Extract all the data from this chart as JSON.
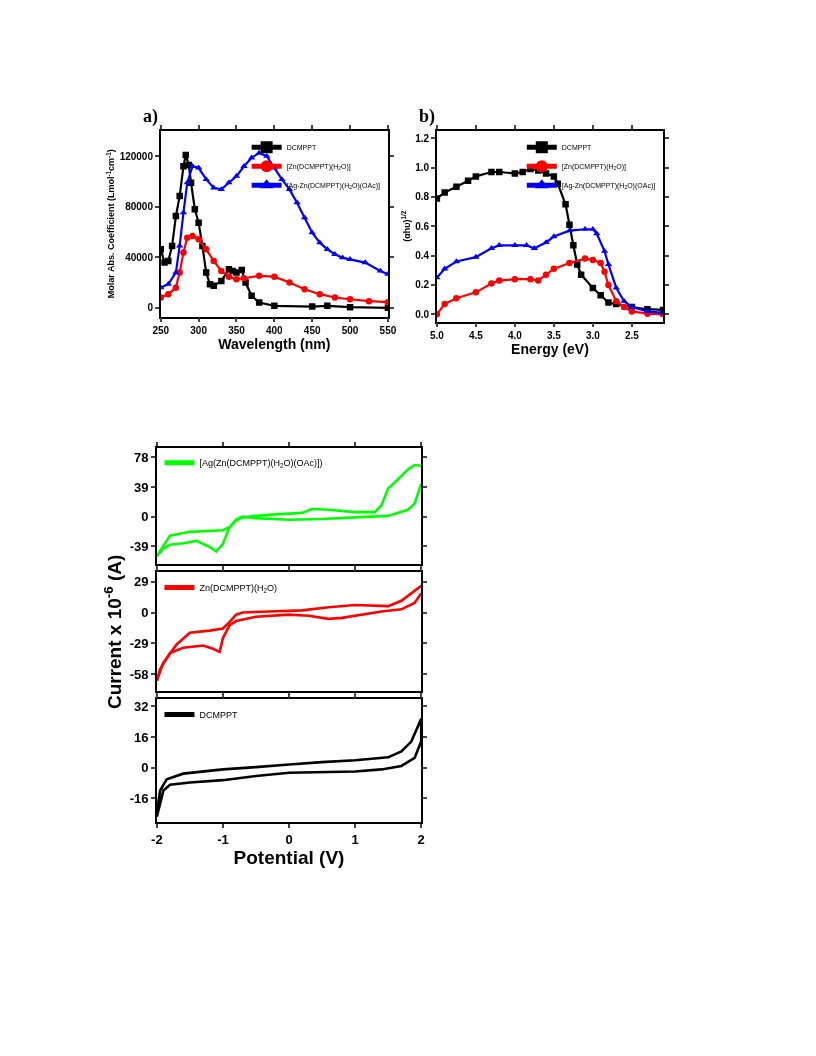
{
  "chart_data": [
    {
      "type": "line",
      "title": "a)",
      "xlabel": "Wavelength (nm)",
      "ylabel": "Molar Abs. Coefficient (Lmol$^{-1}$cm$^{-1}$)",
      "xlim": [
        250,
        550
      ],
      "xticks": [
        250,
        300,
        350,
        400,
        450,
        500,
        550
      ],
      "ylim": [
        -7000,
        140000
      ],
      "yticks": [
        0,
        40000,
        80000,
        120000
      ],
      "legend": "top right",
      "series": [
        {
          "name": "DCMPPT",
          "color": "#000000",
          "marker": "square",
          "x": [
            250,
            255,
            260,
            265,
            270,
            275,
            280,
            283,
            287,
            290,
            295,
            300,
            305,
            310,
            315,
            320,
            330,
            340,
            345,
            350,
            357,
            362,
            370,
            380,
            400,
            450,
            470,
            500,
            550
          ],
          "values": [
            46300,
            35800,
            37000,
            49000,
            72600,
            88400,
            112000,
            121000,
            113000,
            99000,
            78000,
            67400,
            49000,
            27900,
            18700,
            17400,
            21300,
            30500,
            29200,
            28000,
            30000,
            20000,
            9500,
            4200,
            1600,
            1000,
            1600,
            500,
            0
          ]
        },
        {
          "name": "[Zn(DCMPPT)(H$_{2}$O)]",
          "color": "#ff0000",
          "marker": "circle",
          "x": [
            250,
            260,
            270,
            275,
            280,
            285,
            292,
            300,
            310,
            320,
            330,
            340,
            350,
            360,
            380,
            400,
            420,
            440,
            460,
            480,
            500,
            525,
            550
          ],
          "values": [
            8200,
            10800,
            16000,
            27900,
            43700,
            55500,
            56800,
            54200,
            46300,
            37100,
            29200,
            24700,
            22600,
            23400,
            25300,
            24700,
            20000,
            14700,
            10800,
            8200,
            6800,
            5300,
            4500
          ]
        },
        {
          "name": "[Ag-Zn(DCMPPT)(H$_{2}$O)(OAc)]",
          "color": "#0000ff",
          "marker": "triangle",
          "x": [
            250,
            260,
            270,
            275,
            280,
            285,
            292,
            300,
            310,
            320,
            330,
            340,
            350,
            360,
            370,
            380,
            390,
            400,
            410,
            420,
            430,
            440,
            450,
            460,
            470,
            480,
            490,
            500,
            520,
            540,
            550
          ],
          "values": [
            16000,
            18700,
            27900,
            49000,
            75300,
            99000,
            112000,
            110800,
            101600,
            95000,
            93700,
            99000,
            104200,
            112000,
            118700,
            122600,
            120000,
            110800,
            101600,
            93700,
            83200,
            71300,
            59500,
            51600,
            46300,
            42400,
            39700,
            38400,
            35800,
            29200,
            26600
          ]
        }
      ]
    },
    {
      "type": "line",
      "title": "b)",
      "xlabel": "Energy (eV)",
      "ylabel": "(αhυ)$^{1/2}$",
      "xlim": [
        5.0,
        2.1
      ],
      "xticks": [
        {
          "value": 5.0,
          "label": "5.0"
        },
        {
          "value": 4.5,
          "label": "4.5"
        },
        {
          "value": 4.0,
          "label": "4.0"
        },
        {
          "value": 3.5,
          "label": "3.5"
        },
        {
          "value": 3.0,
          "label": "3.0"
        },
        {
          "value": 2.5,
          "label": "2.5"
        }
      ],
      "ylim": [
        -0.05,
        1.25
      ],
      "yticks": [
        {
          "value": 0,
          "label": "0.0"
        },
        0.2,
        0.4,
        0.6,
        0.8,
        {
          "value": 1,
          "label": "1.0"
        },
        1.2
      ],
      "legend": "top right",
      "series": [
        {
          "name": "DCMPPT",
          "color": "#000000",
          "marker": "square",
          "x": [
            5.0,
            4.9,
            4.75,
            4.6,
            4.5,
            4.3,
            4.2,
            4.0,
            3.9,
            3.8,
            3.7,
            3.6,
            3.5,
            3.45,
            3.35,
            3.3,
            3.25,
            3.2,
            3.15,
            3.0,
            2.9,
            2.8,
            2.7,
            2.5,
            2.3,
            2.1
          ],
          "values": [
            0.79,
            0.83,
            0.87,
            0.91,
            0.94,
            0.97,
            0.97,
            0.96,
            0.97,
            0.99,
            0.98,
            0.96,
            0.94,
            0.89,
            0.75,
            0.61,
            0.47,
            0.34,
            0.27,
            0.18,
            0.13,
            0.08,
            0.07,
            0.05,
            0.035,
            0.03
          ]
        },
        {
          "name": "[Zn(DCMPPT)(H$_{2}$O)]",
          "color": "#ff0000",
          "marker": "circle",
          "x": [
            5.0,
            4.9,
            4.75,
            4.5,
            4.3,
            4.2,
            4.0,
            3.8,
            3.7,
            3.6,
            3.5,
            3.3,
            3.1,
            3.0,
            2.9,
            2.85,
            2.8,
            2.7,
            2.6,
            2.5,
            2.3,
            2.1
          ],
          "values": [
            0.0,
            0.07,
            0.11,
            0.15,
            0.21,
            0.23,
            0.24,
            0.24,
            0.23,
            0.27,
            0.31,
            0.35,
            0.38,
            0.37,
            0.35,
            0.29,
            0.2,
            0.09,
            0.05,
            0.02,
            0.005,
            0.0
          ]
        },
        {
          "name": "[Ag-Zn(DCMPPT)(H$_{2}$O)(OAc)]",
          "color": "#0000ff",
          "marker": "triangle",
          "x": [
            5.0,
            4.9,
            4.75,
            4.5,
            4.3,
            4.2,
            4.0,
            3.85,
            3.75,
            3.6,
            3.5,
            3.3,
            3.1,
            3.0,
            2.95,
            2.85,
            2.8,
            2.7,
            2.6,
            2.5,
            2.3,
            2.1
          ],
          "values": [
            0.25,
            0.31,
            0.36,
            0.39,
            0.45,
            0.47,
            0.47,
            0.47,
            0.45,
            0.49,
            0.53,
            0.57,
            0.58,
            0.58,
            0.55,
            0.43,
            0.34,
            0.18,
            0.09,
            0.05,
            0.02,
            0.01
          ]
        }
      ]
    },
    {
      "type": "line",
      "xlim": [
        -2,
        2
      ],
      "xticks": [
        -2,
        -1,
        0,
        1,
        2
      ],
      "ylim": [
        -63,
        91
      ],
      "yticks": [
        -39,
        0,
        39,
        78
      ],
      "tick_labels": "y",
      "legend": "top left",
      "series": [
        {
          "name": "[Ag(Zn(DCMPPT)(H$_{2}$O)(OAc)])",
          "color": "#00ff00",
          "x": [
            -2.0,
            -1.8,
            -1.5,
            -1.0,
            -0.9,
            -0.8,
            -0.7,
            -0.5,
            0,
            0.5,
            1.0,
            1.5,
            1.8,
            1.9,
            2.0
          ],
          "values": [
            -52,
            -25,
            -20,
            -18,
            -14,
            -4,
            0,
            -2,
            -4,
            -3,
            -1,
            1,
            9,
            17,
            43
          ]
        },
        {
          "color": "#00ff00",
          "x": [
            -2.0,
            -1.9,
            -1.8,
            -1.6,
            -1.4,
            -1.2,
            -1.1,
            -1.0,
            -0.9,
            -0.8,
            -0.7,
            -0.5,
            -0.2,
            0.2,
            0.35,
            0.6,
            1.0,
            1.3,
            1.4,
            1.5,
            1.6,
            1.8,
            1.9,
            2.0
          ],
          "values": [
            -52,
            -42,
            -37,
            -35,
            -32,
            -40,
            -46,
            -36,
            -14,
            -5,
            -1,
            1,
            3,
            5,
            10,
            9,
            6,
            6,
            15,
            37,
            45,
            62,
            68,
            67
          ]
        }
      ]
    },
    {
      "type": "line",
      "ylabel": "Current x 10$^{-6}$ (A)",
      "xlim": [
        -2,
        2
      ],
      "xticks": [
        -2,
        -1,
        0,
        1,
        2
      ],
      "ylim": [
        -74,
        37.6
      ],
      "yticks": [
        -58,
        -29,
        0,
        29
      ],
      "tick_labels": "y",
      "legend": "top left",
      "series": [
        {
          "name": "Zn(DCMPPT)(H$_{2}$O)",
          "color": "#ff0000",
          "x": [
            -2.0,
            -1.9,
            -1.7,
            -1.5,
            -1.2,
            -1.0,
            -0.9,
            -0.8,
            -0.7,
            -0.3,
            0.2,
            0.6,
            1.0,
            1.5,
            1.7,
            1.85,
            2.0
          ],
          "values": [
            -64,
            -47,
            -30,
            -19,
            -17,
            -15,
            -9,
            -2,
            0,
            1,
            2,
            5,
            7,
            6,
            11,
            18,
            25
          ]
        },
        {
          "color": "#ff0000",
          "x": [
            -2.0,
            -1.95,
            -1.8,
            -1.6,
            -1.3,
            -1.15,
            -1.05,
            -1.0,
            -0.9,
            -0.8,
            -0.5,
            0,
            0.3,
            0.6,
            0.8,
            1.4,
            1.7,
            1.9,
            2.0
          ],
          "values": [
            -64,
            -53,
            -38,
            -33,
            -31,
            -34,
            -37,
            -24,
            -12,
            -8,
            -4,
            -2,
            -3,
            -6,
            -5,
            1,
            3,
            9,
            18
          ]
        }
      ]
    },
    {
      "type": "line",
      "xlabel": "Potential (V)",
      "xlim": [
        -2,
        2
      ],
      "xticks": [
        -2,
        -1,
        0,
        1,
        2
      ],
      "ylim": [
        -28.4,
        35.6
      ],
      "yticks": [
        -16,
        0,
        16,
        32
      ],
      "legend": "top left",
      "series": [
        {
          "name": "DCMPPT",
          "color": "#000000",
          "x": [
            -2.0,
            -1.95,
            -1.85,
            -1.6,
            -1.0,
            -0.5,
            0,
            0.5,
            1.0,
            1.5,
            1.7,
            1.85,
            2.0,
            2.0,
            1.9,
            1.7,
            1.4,
            1.0,
            0,
            -0.5,
            -1.0,
            -1.5,
            -1.8,
            -1.9,
            -2.0
          ],
          "values": [
            -23.8,
            -11.9,
            -6,
            -3.1,
            -0.9,
            0.3,
            1.7,
            2.9,
            3.9,
            5.4,
            8.5,
            13.6,
            25.5,
            13.6,
            5.1,
            0.9,
            -0.9,
            -2,
            -2.6,
            -4.3,
            -6.5,
            -7.7,
            -8.9,
            -11.9,
            -25.5
          ]
        }
      ]
    }
  ]
}
